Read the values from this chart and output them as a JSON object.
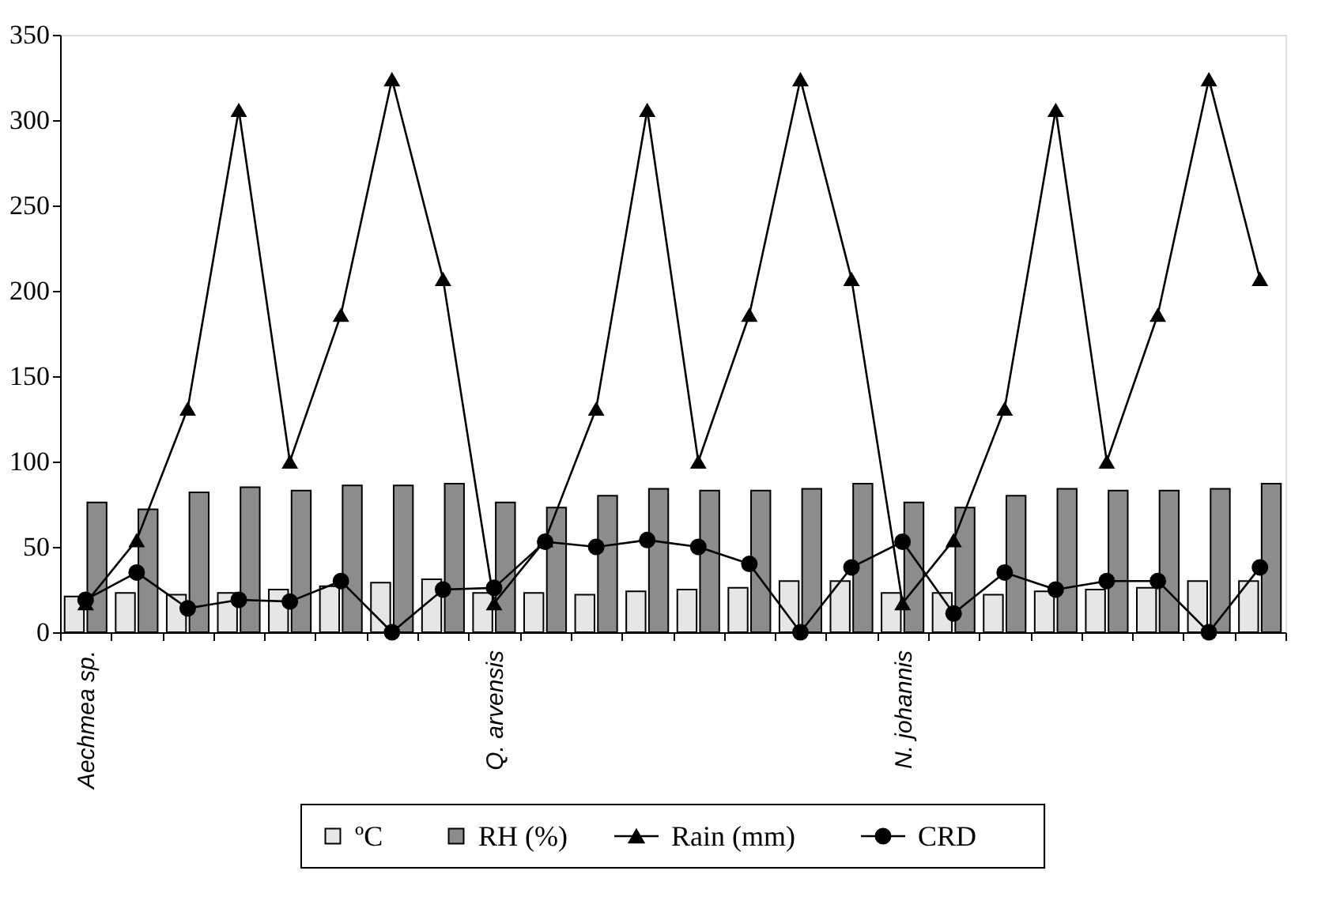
{
  "chart_data": {
    "type": "bar",
    "categories": [
      "Aechmea sp.",
      null,
      null,
      null,
      null,
      null,
      null,
      null,
      "Q. arvensis",
      null,
      null,
      null,
      null,
      null,
      null,
      null,
      "N. johannis",
      null,
      null,
      null,
      null,
      null,
      null,
      null
    ],
    "ylim": [
      0,
      350
    ],
    "yticks": [
      0,
      50,
      100,
      150,
      200,
      250,
      300,
      350
    ],
    "grid": false,
    "legend": "bottom",
    "series": [
      {
        "name": "ºC",
        "color": "#e6e6e6",
        "values": [
          21,
          23,
          22,
          23,
          25,
          27,
          29,
          31,
          23,
          23,
          22,
          24,
          25,
          26,
          30,
          30,
          23,
          23,
          22,
          24,
          25,
          26,
          30,
          30
        ]
      },
      {
        "name": "RH (%)",
        "color": "#8c8c8c",
        "values": [
          76,
          72,
          82,
          85,
          83,
          86,
          86,
          87,
          76,
          73,
          80,
          84,
          83,
          83,
          84,
          87,
          76,
          73,
          80,
          84,
          83,
          83,
          84,
          87
        ]
      },
      {
        "name": "Rain (mm)",
        "type": "line",
        "color": "#000000",
        "marker": "triangle",
        "values": [
          17,
          54,
          131,
          306,
          100,
          186,
          324,
          207,
          17,
          54,
          131,
          306,
          100,
          186,
          324,
          207,
          17,
          54,
          131,
          306,
          100,
          186,
          324,
          207
        ]
      },
      {
        "name": "CRD",
        "type": "line",
        "color": "#000000",
        "marker": "circle",
        "values": [
          19,
          35,
          14,
          19,
          18,
          30,
          0,
          25,
          26,
          53,
          50,
          54,
          50,
          40,
          0,
          38,
          53,
          11,
          35,
          25,
          30,
          30,
          0,
          38
        ]
      }
    ]
  }
}
